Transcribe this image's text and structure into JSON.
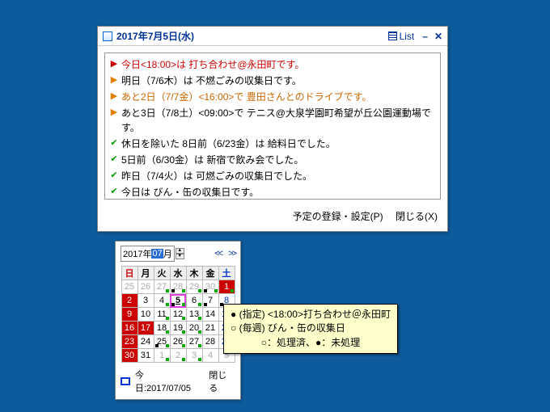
{
  "schedule": {
    "title": "2017年7月5日(水)",
    "list_label": "List",
    "items": [
      {
        "icon": "▶",
        "iconcls": "red",
        "text": "今日<18:00>は 打ち合わせ@永田町です。",
        "cls": "red"
      },
      {
        "icon": "▶",
        "iconcls": "orange",
        "text": "明日（7/6木）は 不燃ごみの収集日です。",
        "cls": ""
      },
      {
        "icon": "▶",
        "iconcls": "orange",
        "text": "あと2日（7/7金）<16:00>で 豊田さんとのドライブです。",
        "cls": "orange"
      },
      {
        "icon": "▶",
        "iconcls": "orange",
        "text": "あと3日（7/8土）<09:00>で テニス@大泉学園町希望が丘公園運動場です。",
        "cls": ""
      },
      {
        "icon": "✔",
        "iconcls": "green",
        "text": "休日を除いた 8日前（6/23金）は 給料日でした。",
        "cls": ""
      },
      {
        "icon": "✔",
        "iconcls": "green",
        "text": "5日前（6/30金）は 新宿で飲み会でした。",
        "cls": ""
      },
      {
        "icon": "✔",
        "iconcls": "green",
        "text": "昨日（7/4火）は 可燃ごみの収集日でした。",
        "cls": ""
      },
      {
        "icon": "✔",
        "iconcls": "green",
        "text": "今日は びん・缶の収集日です。",
        "cls": ""
      }
    ],
    "btn_register": "予定の登録・設定(P)",
    "btn_close": "閉じる(X)"
  },
  "calendar": {
    "year_prefix": "2017年",
    "month_sel": "07",
    "month_suffix": "月",
    "nav_prev": "<<",
    "nav_next": ">>",
    "dow": [
      "日",
      "月",
      "火",
      "水",
      "木",
      "金",
      "土"
    ],
    "today_label": "今日:2017/07/05",
    "close_label": "閉じる"
  },
  "tooltip": {
    "l1": "● (指定) <18:00>打ち合わせ＠永田町",
    "l2": "○ (毎週) びん・缶の収集日",
    "l3": "○：処理済、●：未処理"
  }
}
